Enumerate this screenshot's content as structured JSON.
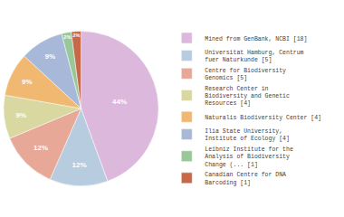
{
  "chart_data": {
    "type": "pie",
    "categories": [
      "Mined from GenBank, NCBI [18]",
      "Universitat Hamburg, Centrum\nfuer Naturkunde [5]",
      "Centre for Biodiversity\nGenomics [5]",
      "Research Center in\nBiodiversity and Genetic\nResources [4]",
      "Naturalis Biodiversity Center [4]",
      "Ilia State University,\nInstitute of Ecology [4]",
      "Leibniz Institute for the\nAnalysis of Biodiversity\nChange (... [1]",
      "Canadian Centre for DNA\nBarcoding [1]"
    ],
    "values": [
      44,
      12,
      12,
      9,
      9,
      9,
      2,
      2
    ],
    "value_labels": [
      "44%",
      "12%",
      "12%",
      "9%",
      "9%",
      "9%",
      "2%",
      "2%"
    ],
    "colors": [
      "#ddb8dd",
      "#b8cce0",
      "#e8a898",
      "#d8d8a0",
      "#f0b870",
      "#a8b8d8",
      "#98c898",
      "#c86848"
    ],
    "data_labels": true,
    "legend": "right"
  }
}
